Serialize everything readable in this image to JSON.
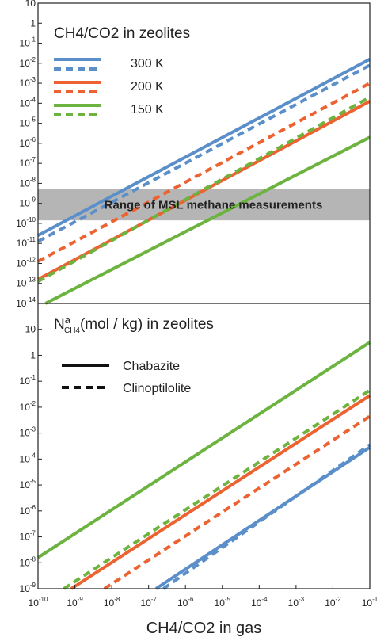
{
  "chart_data": [
    {
      "type": "line",
      "panel": "top",
      "title": "CH4/CO2 in zeolites",
      "x_scale": "log",
      "y_scale": "log",
      "xlim_exp": [
        -10,
        -1
      ],
      "ylim_exp": [
        -14,
        1
      ],
      "y_tick_labels": [
        "10",
        "1",
        "10-1",
        "10-2",
        "10-3",
        "10-4",
        "10-5",
        "10-6",
        "10-7",
        "10-8",
        "10-9",
        "10-10",
        "10-11",
        "10-12",
        "10-13",
        "10-14"
      ],
      "band": {
        "label": "Range of MSL methane measurements",
        "y_exp_range": [
          -9.85,
          -8.3
        ]
      },
      "legend": [
        {
          "label": "300 K",
          "color": "#5b8fc9"
        },
        {
          "label": "200 K",
          "color": "#ec6331"
        },
        {
          "label": "150 K",
          "color": "#6cb33f"
        }
      ],
      "series": [
        {
          "temperature": "300 K",
          "style": "solid",
          "color": "#5b8fc9",
          "x_exp": [
            -10,
            -1
          ],
          "y_exp": [
            -10.6,
            -1.8
          ]
        },
        {
          "temperature": "300 K",
          "style": "dashed",
          "color": "#5b8fc9",
          "x_exp": [
            -10,
            -1
          ],
          "y_exp": [
            -10.9,
            -2.1
          ]
        },
        {
          "temperature": "200 K",
          "style": "solid",
          "color": "#ec6331",
          "x_exp": [
            -10,
            -1
          ],
          "y_exp": [
            -12.8,
            -3.9
          ]
        },
        {
          "temperature": "200 K",
          "style": "dashed",
          "color": "#ec6331",
          "x_exp": [
            -10,
            -1
          ],
          "y_exp": [
            -11.9,
            -3.0
          ]
        },
        {
          "temperature": "150 K",
          "style": "solid",
          "color": "#6cb33f",
          "x_exp": [
            -9.8,
            -1
          ],
          "y_exp": [
            -14.0,
            -5.7
          ]
        },
        {
          "temperature": "150 K",
          "style": "dashed",
          "color": "#6cb33f",
          "x_exp": [
            -10,
            -1
          ],
          "y_exp": [
            -12.9,
            -3.7
          ]
        }
      ]
    },
    {
      "type": "line",
      "panel": "bottom",
      "title_main": "N",
      "title_sup": "a",
      "title_sub": "CH4",
      "title_rest": "(mol / kg) in zeolites",
      "x_scale": "log",
      "y_scale": "log",
      "xlim_exp": [
        -10,
        -1
      ],
      "ylim_exp": [
        -9,
        2
      ],
      "xlabel": "CH4/CO2 in gas",
      "x_tick_labels": [
        "10-10",
        "10-9",
        "10-8",
        "10-7",
        "10-6",
        "10-5",
        "10-4",
        "10-3",
        "10-2",
        "10-1"
      ],
      "y_tick_labels": [
        "10",
        "1",
        "10-1",
        "10-2",
        "10-3",
        "10-4",
        "10-5",
        "10-6",
        "10-7",
        "10-8",
        "10-9"
      ],
      "legend": [
        {
          "label": "Chabazite",
          "style": "solid"
        },
        {
          "label": "Clinoptilolite",
          "style": "dashed"
        }
      ],
      "series": [
        {
          "temperature": "150 K",
          "zeolite": "Chabazite",
          "color": "#6cb33f",
          "style": "solid",
          "x_exp": [
            -10,
            -1
          ],
          "y_exp": [
            -7.8,
            0.5
          ]
        },
        {
          "temperature": "150 K",
          "zeolite": "Clinoptilolite",
          "color": "#6cb33f",
          "style": "dashed",
          "x_exp": [
            -9.3,
            -1
          ],
          "y_exp": [
            -9.0,
            -1.35
          ]
        },
        {
          "temperature": "200 K",
          "zeolite": "Chabazite",
          "color": "#ec6331",
          "style": "solid",
          "x_exp": [
            -9.1,
            -1
          ],
          "y_exp": [
            -9.0,
            -1.55
          ]
        },
        {
          "temperature": "200 K",
          "zeolite": "Clinoptilolite",
          "color": "#ec6331",
          "style": "dashed",
          "x_exp": [
            -8.2,
            -1
          ],
          "y_exp": [
            -9.0,
            -2.35
          ]
        },
        {
          "temperature": "300 K",
          "zeolite": "Chabazite",
          "color": "#5b8fc9",
          "style": "solid",
          "x_exp": [
            -6.8,
            -1
          ],
          "y_exp": [
            -9.0,
            -3.55
          ]
        },
        {
          "temperature": "300 K",
          "zeolite": "Clinoptilolite",
          "color": "#5b8fc9",
          "style": "dashed",
          "x_exp": [
            -6.6,
            -1
          ],
          "y_exp": [
            -9.0,
            -3.45
          ]
        }
      ]
    }
  ]
}
